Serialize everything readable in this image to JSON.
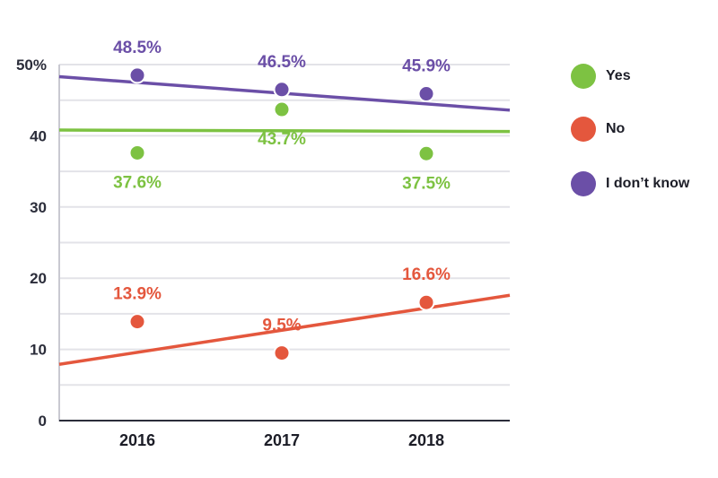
{
  "chart_data": {
    "type": "scatter",
    "categories": [
      "2016",
      "2017",
      "2018"
    ],
    "ylim": [
      0,
      50
    ],
    "y_ticks": [
      {
        "value": 0,
        "label": "0"
      },
      {
        "value": 10,
        "label": "10"
      },
      {
        "value": 20,
        "label": "20"
      },
      {
        "value": 30,
        "label": "30"
      },
      {
        "value": 40,
        "label": "40"
      },
      {
        "value": 50,
        "label": "50%"
      }
    ],
    "minor_grid_step": 5,
    "grid": true,
    "legend_position": "right",
    "series": [
      {
        "name": "Yes",
        "color": "#7dc242",
        "values": [
          37.6,
          43.7,
          37.5
        ],
        "labels": [
          "37.6%",
          "43.7%",
          "37.5%"
        ],
        "trend": [
          40.8,
          40.6
        ]
      },
      {
        "name": "No",
        "color": "#e4573d",
        "values": [
          13.9,
          9.5,
          16.6
        ],
        "labels": [
          "13.9%",
          "9.5%",
          "16.6%"
        ],
        "trend": [
          7.9,
          17.6
        ]
      },
      {
        "name": "I don’t know",
        "color": "#6b4fa7",
        "values": [
          48.5,
          46.5,
          45.9
        ],
        "labels": [
          "48.5%",
          "46.5%",
          "45.9%"
        ],
        "trend": [
          48.3,
          43.6
        ]
      }
    ]
  }
}
